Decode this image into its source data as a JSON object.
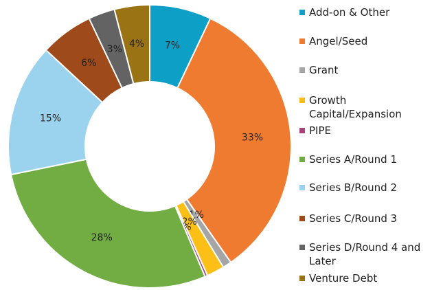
{
  "chart_data": {
    "type": "donut",
    "series": [
      {
        "name": "Add-on & Other",
        "color": "#0e9fc6",
        "value": 7,
        "value_label": "7%"
      },
      {
        "name": "Angel/Seed",
        "color": "#ee7b30",
        "value": 33,
        "value_label": "33%"
      },
      {
        "name": "Grant",
        "color": "#a5a5a5",
        "value": 1,
        "value_label": "1%"
      },
      {
        "name": "Growth Capital/Expansion",
        "color": "#fbbf17",
        "value": 2,
        "value_label": "2%"
      },
      {
        "name": "PIPE",
        "color": "#a5437a",
        "value": 0.3,
        "value_label": "0%"
      },
      {
        "name": "Series A/Round 1",
        "color": "#72ad44",
        "value": 28,
        "value_label": "28%"
      },
      {
        "name": "Series B/Round 2",
        "color": "#9bd3ee",
        "value": 15,
        "value_label": "15%"
      },
      {
        "name": "Series C/Round 3",
        "color": "#9e4a1a",
        "value": 6,
        "value_label": "6%"
      },
      {
        "name": "Series D/Round 4 and Later",
        "color": "#636363",
        "value": 3,
        "value_label": "3%"
      },
      {
        "name": "Venture Debt",
        "color": "#9a7315",
        "value": 4,
        "value_label": "4%"
      }
    ],
    "legend": "right"
  }
}
